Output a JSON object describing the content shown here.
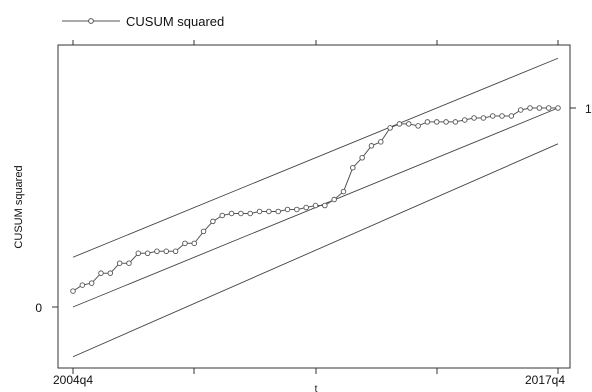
{
  "chart_data": {
    "type": "line",
    "title": "",
    "xlabel": "t",
    "ylabel": "CUSUM squared",
    "legend": {
      "position": "top-left",
      "entries": [
        "CUSUM squared"
      ]
    },
    "grid": false,
    "x_tick_labels": [
      "2004q4",
      "2017q4"
    ],
    "y_tick_labels_left": [
      "0"
    ],
    "y_tick_labels_right": [
      "1"
    ],
    "xlim": [
      0,
      52
    ],
    "ylim": [
      -0.25,
      1.1
    ],
    "colors": {
      "series": "#555555",
      "bounds": "#444444",
      "frame": "#333333"
    },
    "series": [
      {
        "name": "CUSUM squared",
        "marker": "circle",
        "x": [
          0,
          1,
          2,
          3,
          4,
          5,
          6,
          7,
          8,
          9,
          10,
          11,
          12,
          13,
          14,
          15,
          16,
          17,
          18,
          19,
          20,
          21,
          22,
          23,
          24,
          25,
          26,
          27,
          28,
          29,
          30,
          31,
          32,
          33,
          34,
          35,
          36,
          37,
          38,
          39,
          40,
          41,
          42,
          43,
          44,
          45,
          46,
          47,
          48,
          49,
          50,
          51,
          52
        ],
        "values": [
          0.08,
          0.11,
          0.12,
          0.17,
          0.17,
          0.22,
          0.22,
          0.27,
          0.27,
          0.28,
          0.28,
          0.28,
          0.32,
          0.32,
          0.38,
          0.43,
          0.46,
          0.47,
          0.47,
          0.47,
          0.48,
          0.48,
          0.48,
          0.49,
          0.49,
          0.5,
          0.51,
          0.51,
          0.54,
          0.58,
          0.7,
          0.75,
          0.81,
          0.83,
          0.9,
          0.92,
          0.92,
          0.91,
          0.93,
          0.93,
          0.93,
          0.93,
          0.94,
          0.95,
          0.95,
          0.96,
          0.96,
          0.96,
          0.99,
          1.0,
          1.0,
          1.0,
          1.0
        ]
      }
    ],
    "reference_lines": [
      {
        "name": "upper",
        "x": [
          0,
          52
        ],
        "values": [
          0.25,
          1.25
        ]
      },
      {
        "name": "center",
        "x": [
          0,
          52
        ],
        "values": [
          0.0,
          1.0
        ]
      },
      {
        "name": "lower",
        "x": [
          0,
          52
        ],
        "values": [
          -0.25,
          0.82
        ]
      }
    ]
  }
}
